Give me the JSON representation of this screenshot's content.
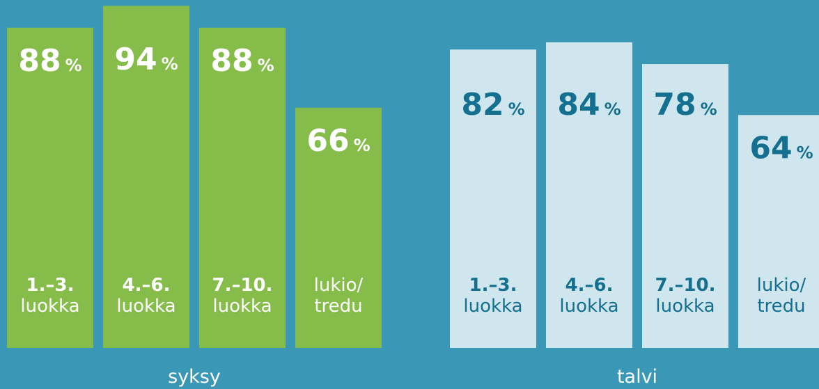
{
  "chart_data": [
    {
      "type": "bar",
      "title": "syksy",
      "unit": "%",
      "color": "#86bd4a",
      "label_color": "#ffffff",
      "categories": [
        [
          "1.–3.",
          "luokka"
        ],
        [
          "4.–6.",
          "luokka"
        ],
        [
          "7.–10.",
          "luokka"
        ],
        [
          "lukio/",
          "tredu"
        ]
      ],
      "values": [
        88,
        94,
        88,
        66
      ]
    },
    {
      "type": "bar",
      "title": "talvi",
      "unit": "%",
      "color": "#cfe6ef",
      "label_color": "#15708f",
      "categories": [
        [
          "1.–3.",
          "luokka"
        ],
        [
          "4.–6.",
          "luokka"
        ],
        [
          "7.–10.",
          "luokka"
        ],
        [
          "lukio/",
          "tredu"
        ]
      ],
      "values": [
        82,
        84,
        78,
        64
      ]
    }
  ]
}
